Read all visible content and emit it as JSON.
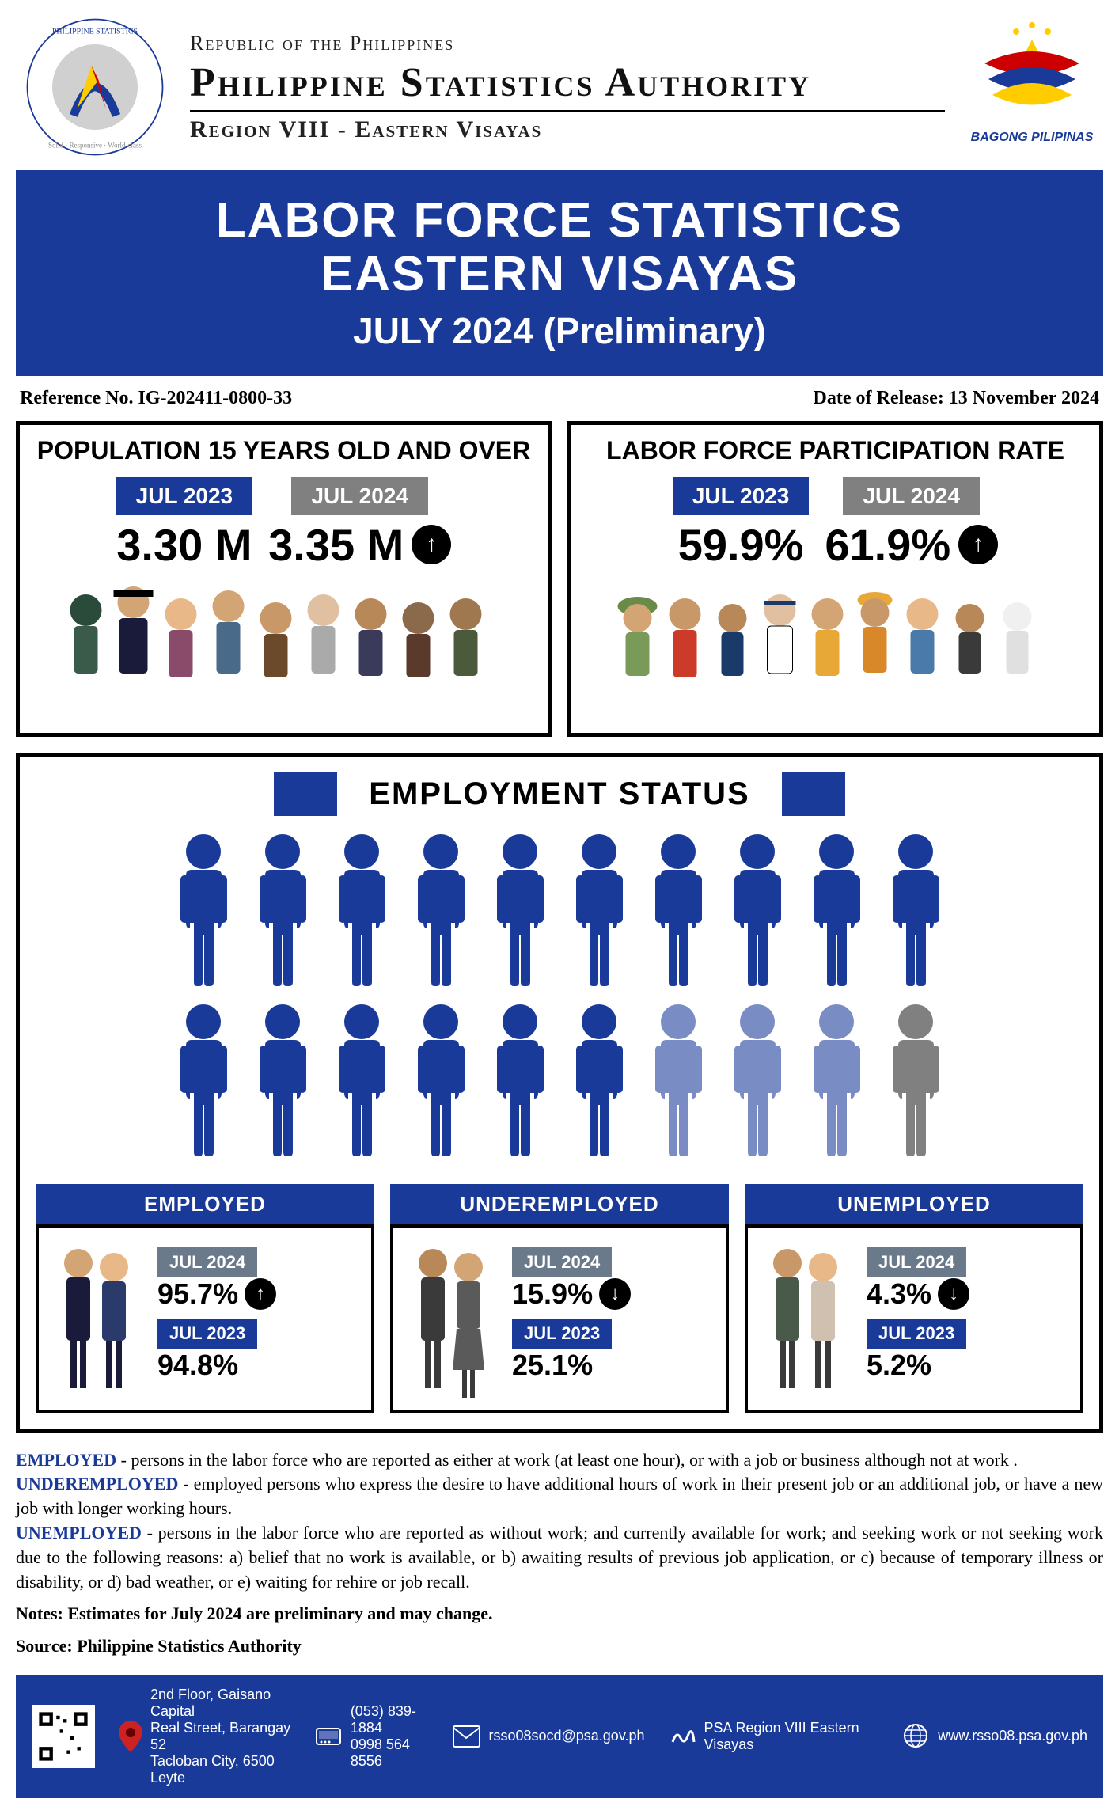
{
  "header": {
    "republic": "Republic of the Philippines",
    "psa": "Philippine Statistics Authority",
    "region": "Region VIII - Eastern Visayas",
    "bagong": "BAGONG PILIPINAS",
    "logo_left_top": "Philippine Statistics Authority",
    "logo_left_bottom": "Solid · Responsive · World-class"
  },
  "banner": {
    "line1": "LABOR FORCE STATISTICS",
    "line2": "EASTERN VISAYAS",
    "sub": "JULY 2024 (Preliminary)"
  },
  "reference": {
    "ref_no": "Reference No. IG-202411-0800-33",
    "release": "Date of Release: 13 November  2024"
  },
  "population": {
    "title": "POPULATION 15 YEARS OLD AND OVER",
    "y2023_label": "JUL 2023",
    "y2023_value": "3.30 M",
    "y2024_label": "JUL 2024",
    "y2024_value": "3.35 M",
    "direction": "up"
  },
  "lfpr": {
    "title": "LABOR FORCE PARTICIPATION RATE",
    "y2023_label": "JUL 2023",
    "y2023_value": "59.9%",
    "y2024_label": "JUL 2024",
    "y2024_value": "61.9%",
    "direction": "up"
  },
  "employment_status": {
    "title": "EMPLOYMENT STATUS",
    "pictogram": {
      "row1_count": 10,
      "row2_count": 10,
      "colors": {
        "employed": "#1a3a9a",
        "underemployed": "#7a8cc4",
        "unemployed": "#808080"
      },
      "row2_breakdown": {
        "employed": 6,
        "underemployed": 3,
        "unemployed": 1
      }
    },
    "employed": {
      "label": "EMPLOYED",
      "y2024_label": "JUL 2024",
      "y2024_value": "95.7%",
      "y2023_label": "JUL 2023",
      "y2023_value": "94.8%",
      "direction": "up"
    },
    "underemployed": {
      "label": "UNDEREMPLOYED",
      "y2024_label": "JUL 2024",
      "y2024_value": "15.9%",
      "y2023_label": "JUL 2023",
      "y2023_value": "25.1%",
      "direction": "down"
    },
    "unemployed": {
      "label": "UNEMPLOYED",
      "y2024_label": "JUL 2024",
      "y2024_value": "4.3%",
      "y2023_label": "JUL 2023",
      "y2023_value": "5.2%",
      "direction": "down"
    }
  },
  "definitions": {
    "employed_term": "EMPLOYED",
    "employed_def": " - persons in the labor force who are reported as either at work (at least one hour), or with a job or business although not at work .",
    "underemployed_term": "UNDEREMPLOYED",
    "underemployed_def": " - employed persons who express the desire to have additional hours of work in their present job or an additional job, or have a new job with longer working hours.",
    "unemployed_term": "UNEMPLOYED",
    "unemployed_def": " - persons in the labor force who are reported as without work; and currently available for work; and seeking work or not seeking work due to the following reasons: a) belief that no work is available, or b) awaiting results of previous job application, or c) because of temporary illness or disability, or d) bad weather, or e) waiting for rehire or job recall.",
    "notes": "Notes: Estimates for July 2024 are preliminary and may change.",
    "source": "Source:  Philippine Statistics Authority"
  },
  "footer": {
    "address_l1": "2nd Floor, Gaisano Capital",
    "address_l2": "Real Street, Barangay 52",
    "address_l3": "Tacloban City, 6500 Leyte",
    "phone1": "(053) 839-1884",
    "phone2": "0998 564 8556",
    "email": "rsso08socd@psa.gov.ph",
    "social": "PSA Region VIII Eastern Visayas",
    "web": "www.rsso08.psa.gov.ph"
  },
  "colors": {
    "primary_blue": "#1a3a9a",
    "gray": "#808080",
    "light_blue": "#7a8cc4"
  }
}
